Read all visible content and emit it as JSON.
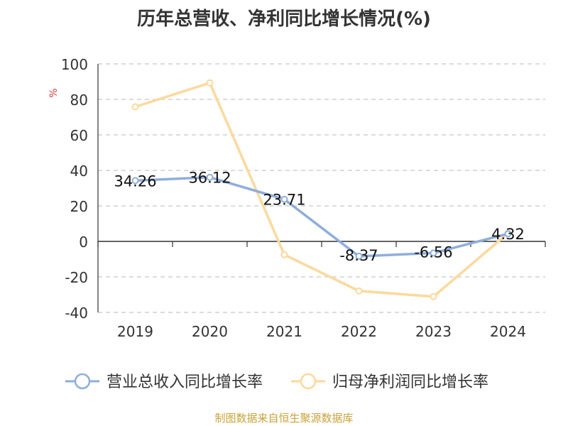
{
  "chart_data": {
    "type": "line",
    "title": "历年总营收、净利同比增长情况(%)",
    "ylabel": "%",
    "categories": [
      "2019",
      "2020",
      "2021",
      "2022",
      "2023",
      "2024"
    ],
    "ylim": [
      -40,
      100
    ],
    "yticks": [
      100,
      80,
      60,
      40,
      20,
      0,
      -20,
      -40
    ],
    "grid": true,
    "legend_position": "bottom",
    "series": [
      {
        "name": "营业总收入同比增长率",
        "color": "#8eaedb",
        "values": [
          34.26,
          36.12,
          23.71,
          -8.37,
          -6.56,
          4.32
        ],
        "labels": [
          "34.26",
          "36.12",
          "23.71",
          "-8.37",
          "-6.56",
          "4.32"
        ]
      },
      {
        "name": "归母净利润同比增长率",
        "color": "#fcd99c",
        "values": [
          75.8,
          89.3,
          -7.5,
          -27.9,
          -31.1,
          4.6
        ]
      }
    ]
  },
  "footer": {
    "source": "制图数据来自恒生聚源数据库"
  }
}
